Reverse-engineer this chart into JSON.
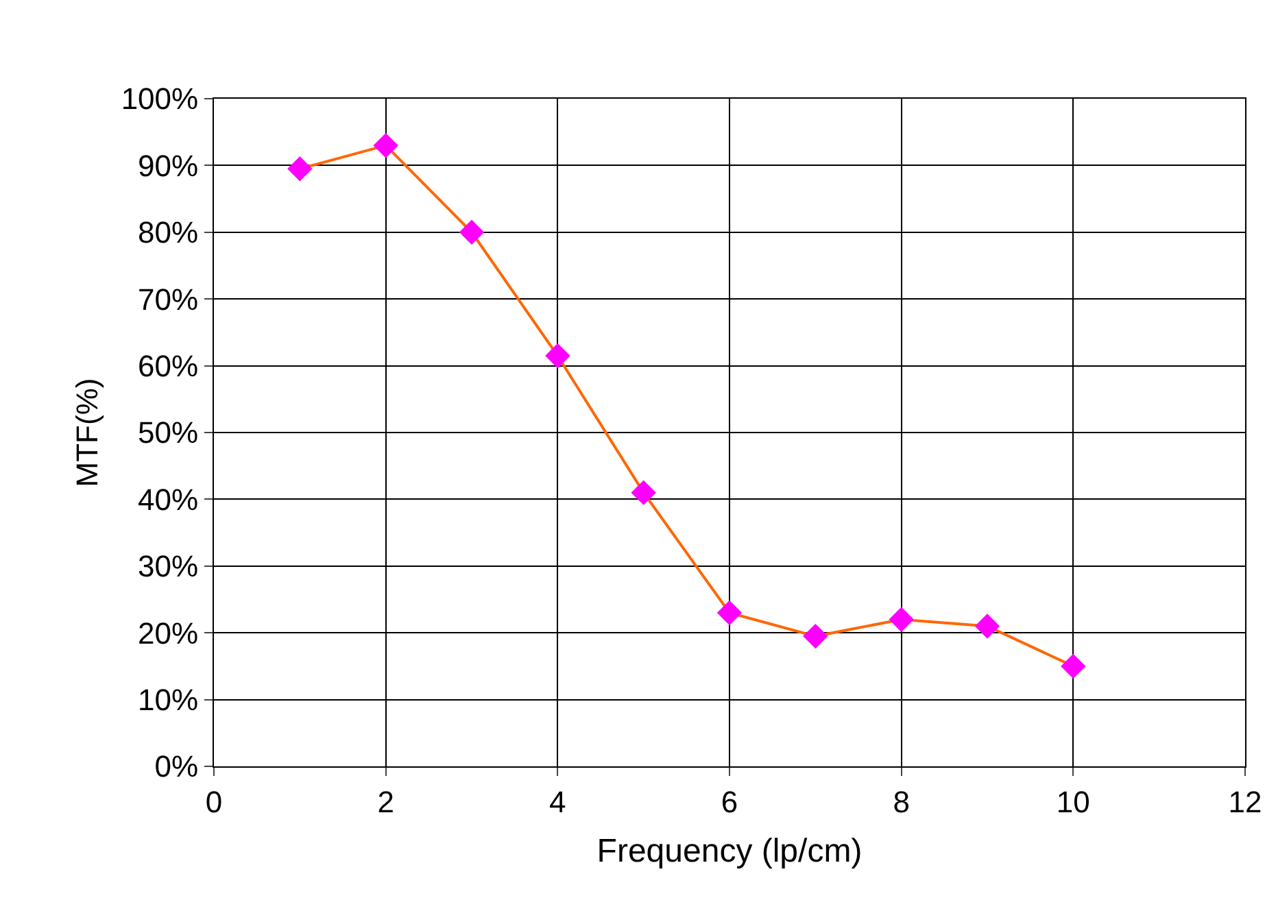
{
  "chart_data": {
    "type": "line",
    "xlabel": "Frequency (lp/cm)",
    "ylabel": "MTF(%)",
    "x": [
      1,
      2,
      3,
      4,
      5,
      6,
      7,
      8,
      9,
      10
    ],
    "series": [
      {
        "color": "#ff6600",
        "colors": [
          "#ff00ff",
          "#ff00ff",
          "#ff00ff",
          "#ff00ff",
          "#ff00ff",
          "#ff00ff",
          "#ff00ff",
          "#ff00ff",
          "#ff00ff",
          "#ff00ff"
        ],
        "values": [
          89.5,
          93,
          80,
          61.5,
          41,
          23,
          19.5,
          22,
          21,
          15
        ]
      }
    ],
    "xlim": [
      0,
      12
    ],
    "xticks": [
      0,
      2,
      4,
      6,
      8,
      10,
      12
    ],
    "ylim": [
      0,
      100
    ],
    "yticks": [
      {
        "value": 0,
        "label": "0%"
      },
      {
        "value": 10,
        "label": "10%"
      },
      {
        "value": 20,
        "label": "20%"
      },
      {
        "value": 30,
        "label": "30%"
      },
      {
        "value": 40,
        "label": "40%"
      },
      {
        "value": 50,
        "label": "50%"
      },
      {
        "value": 60,
        "label": "60%"
      },
      {
        "value": 70,
        "label": "70%"
      },
      {
        "value": 80,
        "label": "80%"
      },
      {
        "value": 90,
        "label": "90%"
      },
      {
        "value": 100,
        "label": "100%"
      }
    ],
    "grid": true,
    "legend": false,
    "marker": "diamond",
    "line_style": "solid"
  }
}
